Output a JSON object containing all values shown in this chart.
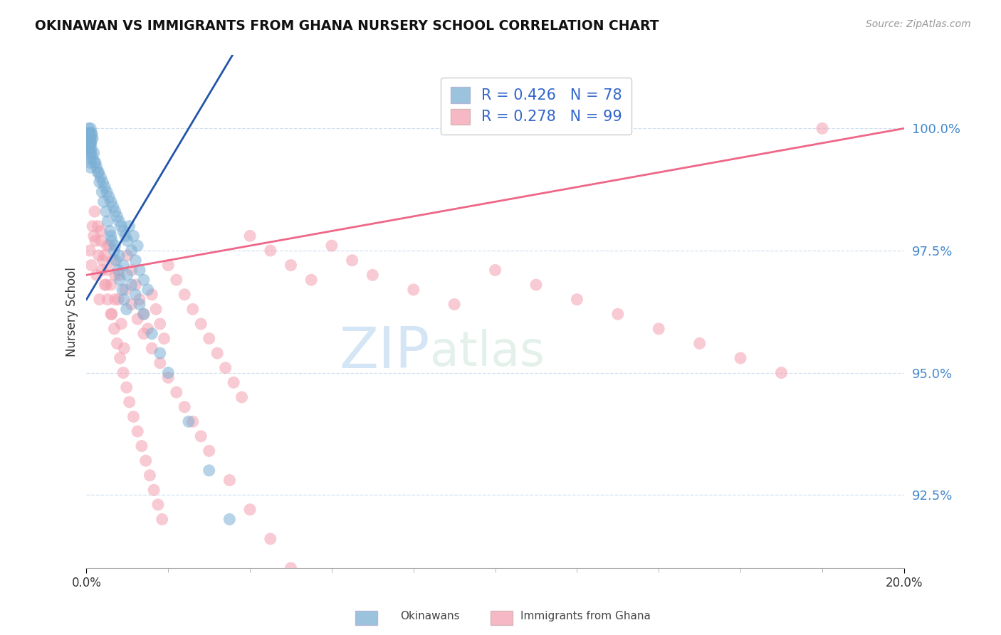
{
  "title": "OKINAWAN VS IMMIGRANTS FROM GHANA NURSERY SCHOOL CORRELATION CHART",
  "source": "Source: ZipAtlas.com",
  "ylabel": "Nursery School",
  "xlim": [
    0.0,
    20.0
  ],
  "ylim": [
    91.0,
    101.5
  ],
  "yticks": [
    92.5,
    95.0,
    97.5,
    100.0
  ],
  "ytick_labels": [
    "92.5%",
    "95.0%",
    "97.5%",
    "100.0%"
  ],
  "okinawan_color": "#7BAFD4",
  "ghana_color": "#F4A0B0",
  "okinawan_R": 0.426,
  "okinawan_N": 78,
  "ghana_R": 0.278,
  "ghana_N": 99,
  "trend_blue": "#2255AA",
  "trend_pink": "#EE6688",
  "watermark_zip": "ZIP",
  "watermark_atlas": "atlas",
  "watermark_color_zip": "#AACCEE",
  "watermark_color_atlas": "#AACCEE",
  "background_color": "#FFFFFF",
  "okinawan_points_x": [
    0.05,
    0.08,
    0.1,
    0.12,
    0.1,
    0.08,
    0.12,
    0.15,
    0.1,
    0.06,
    0.09,
    0.11,
    0.07,
    0.13,
    0.1,
    0.08,
    0.12,
    0.09,
    0.11,
    0.1,
    0.15,
    0.2,
    0.25,
    0.3,
    0.35,
    0.4,
    0.45,
    0.5,
    0.55,
    0.6,
    0.65,
    0.7,
    0.75,
    0.8,
    0.85,
    0.9,
    0.95,
    1.0,
    1.1,
    1.2,
    1.3,
    1.4,
    1.5,
    0.18,
    0.22,
    0.28,
    0.32,
    0.38,
    0.42,
    0.48,
    0.52,
    0.58,
    0.62,
    0.68,
    0.72,
    0.78,
    0.82,
    0.88,
    0.92,
    0.98,
    1.05,
    1.15,
    1.25,
    0.6,
    0.7,
    0.8,
    0.9,
    1.0,
    1.1,
    1.2,
    1.3,
    1.4,
    1.6,
    1.8,
    2.0,
    2.5,
    3.0,
    3.5
  ],
  "okinawan_points_y": [
    100.0,
    99.9,
    100.0,
    99.8,
    99.7,
    99.6,
    99.9,
    99.8,
    99.7,
    99.9,
    99.8,
    99.7,
    99.6,
    99.9,
    99.5,
    99.4,
    99.6,
    99.3,
    99.5,
    99.2,
    99.4,
    99.3,
    99.2,
    99.1,
    99.0,
    98.9,
    98.8,
    98.7,
    98.6,
    98.5,
    98.4,
    98.3,
    98.2,
    98.1,
    98.0,
    97.9,
    97.8,
    97.7,
    97.5,
    97.3,
    97.1,
    96.9,
    96.7,
    99.5,
    99.3,
    99.1,
    98.9,
    98.7,
    98.5,
    98.3,
    98.1,
    97.9,
    97.7,
    97.5,
    97.3,
    97.1,
    96.9,
    96.7,
    96.5,
    96.3,
    98.0,
    97.8,
    97.6,
    97.8,
    97.6,
    97.4,
    97.2,
    97.0,
    96.8,
    96.6,
    96.4,
    96.2,
    95.8,
    95.4,
    95.0,
    94.0,
    93.0,
    92.0
  ],
  "ghana_points_x": [
    0.08,
    0.12,
    0.18,
    0.25,
    0.32,
    0.4,
    0.48,
    0.55,
    0.62,
    0.7,
    0.78,
    0.85,
    0.92,
    1.0,
    1.1,
    1.2,
    1.3,
    1.4,
    1.5,
    1.6,
    1.7,
    1.8,
    1.9,
    2.0,
    2.2,
    2.4,
    2.6,
    2.8,
    3.0,
    3.2,
    3.4,
    3.6,
    3.8,
    4.0,
    4.5,
    5.0,
    5.5,
    6.0,
    6.5,
    7.0,
    8.0,
    9.0,
    10.0,
    11.0,
    12.0,
    13.0,
    14.0,
    15.0,
    16.0,
    17.0,
    18.0,
    0.15,
    0.22,
    0.3,
    0.38,
    0.45,
    0.52,
    0.6,
    0.68,
    0.75,
    0.82,
    0.9,
    0.98,
    1.05,
    1.15,
    1.25,
    1.35,
    1.45,
    1.55,
    1.65,
    1.75,
    1.85,
    0.35,
    0.5,
    0.65,
    0.8,
    0.95,
    1.1,
    1.25,
    1.4,
    1.6,
    1.8,
    2.0,
    2.2,
    2.4,
    2.6,
    2.8,
    3.0,
    3.5,
    4.0,
    4.5,
    5.0,
    0.2,
    0.28,
    0.36,
    0.44,
    0.52,
    0.6,
    0.7
  ],
  "ghana_points_y": [
    97.5,
    97.2,
    97.8,
    97.0,
    96.5,
    97.3,
    96.8,
    97.6,
    96.2,
    97.0,
    96.5,
    96.0,
    95.5,
    97.4,
    97.1,
    96.8,
    96.5,
    96.2,
    95.9,
    96.6,
    96.3,
    96.0,
    95.7,
    97.2,
    96.9,
    96.6,
    96.3,
    96.0,
    95.7,
    95.4,
    95.1,
    94.8,
    94.5,
    97.8,
    97.5,
    97.2,
    96.9,
    97.6,
    97.3,
    97.0,
    96.7,
    96.4,
    97.1,
    96.8,
    96.5,
    96.2,
    95.9,
    95.6,
    95.3,
    95.0,
    100.0,
    98.0,
    97.7,
    97.4,
    97.1,
    96.8,
    96.5,
    96.2,
    95.9,
    95.6,
    95.3,
    95.0,
    94.7,
    94.4,
    94.1,
    93.8,
    93.5,
    93.2,
    92.9,
    92.6,
    92.3,
    92.0,
    97.9,
    97.6,
    97.3,
    97.0,
    96.7,
    96.4,
    96.1,
    95.8,
    95.5,
    95.2,
    94.9,
    94.6,
    94.3,
    94.0,
    93.7,
    93.4,
    92.8,
    92.2,
    91.6,
    91.0,
    98.3,
    98.0,
    97.7,
    97.4,
    97.1,
    96.8,
    96.5
  ]
}
